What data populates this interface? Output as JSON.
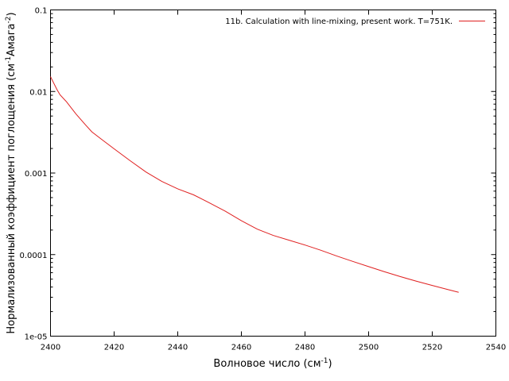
{
  "chart_data": {
    "type": "line",
    "title": "",
    "xlabel": {
      "base": "Волновое число (см",
      "sup": "-1",
      "tail": ")"
    },
    "ylabel": {
      "base": "Нормализованный коэффициент поглощения (см",
      "sup1": "-1",
      "mid": "Амага",
      "sup2": "-2",
      "tail": ")"
    },
    "xlim": [
      2400,
      2540
    ],
    "ylim": [
      1e-05,
      0.1
    ],
    "yscale": "log",
    "grid": false,
    "legend_position": "top-right",
    "x_ticks": [
      2400,
      2420,
      2440,
      2460,
      2480,
      2500,
      2520,
      2540
    ],
    "x_tick_labels": [
      "2400",
      "2420",
      "2440",
      "2460",
      "2480",
      "2500",
      "2520",
      "2540"
    ],
    "y_ticks": [
      1e-05,
      0.0001,
      0.001,
      0.01,
      0.1
    ],
    "y_tick_labels": [
      "1e-05",
      "0.0001",
      "0.001",
      "0.01",
      "0.1"
    ],
    "series": [
      {
        "name": "11b. Calculation with line-mixing, present work. T=751K.",
        "color": "#e02020",
        "x": [
          2400.0,
          2401.0,
          2402.0,
          2403.0,
          2405.0,
          2408.0,
          2411.0,
          2413.0,
          2416.0,
          2420.0,
          2425.0,
          2430.0,
          2435.0,
          2440.0,
          2445.0,
          2450.0,
          2455.0,
          2460.0,
          2465.0,
          2470.0,
          2475.0,
          2480.0,
          2485.0,
          2490.0,
          2495.0,
          2500.0,
          2505.0,
          2510.0,
          2515.0,
          2520.0,
          2525.0,
          2528.3
        ],
        "y": [
          0.0152,
          0.0127,
          0.0106,
          0.0091,
          0.0075,
          0.0053,
          0.0039,
          0.0032,
          0.0026,
          0.00198,
          0.00142,
          0.00103,
          0.00079,
          0.00064,
          0.00054,
          0.00043,
          0.00034,
          0.00026,
          0.000205,
          0.000172,
          0.00015,
          0.000131,
          0.000113,
          9.6e-05,
          8.25e-05,
          7.12e-05,
          6.16e-05,
          5.37e-05,
          4.72e-05,
          4.18e-05,
          3.72e-05,
          3.45e-05
        ]
      }
    ]
  }
}
